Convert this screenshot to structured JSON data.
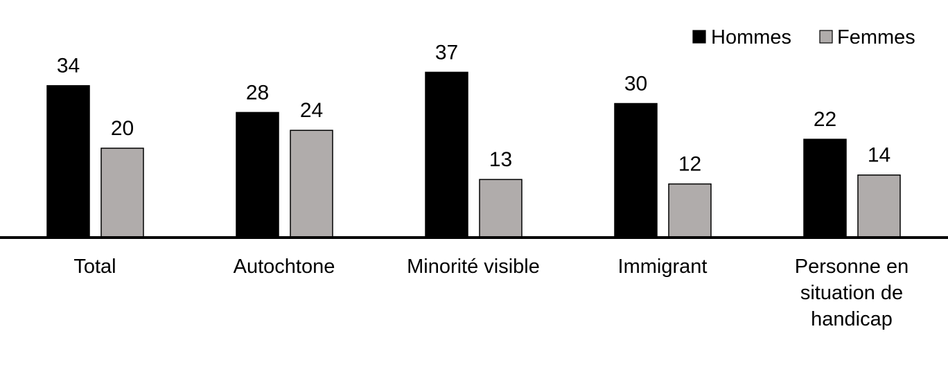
{
  "chart_data": {
    "type": "bar",
    "title": "",
    "xlabel": "",
    "ylabel": "",
    "ylim": [
      0,
      40
    ],
    "grid": false,
    "legend_position": "top-right",
    "categories": [
      [
        "Total"
      ],
      [
        "Autochtone"
      ],
      [
        "Minorité visible"
      ],
      [
        "Immigrant"
      ],
      [
        "Personne en",
        "situation de",
        "handicap"
      ]
    ],
    "series": [
      {
        "name": "Hommes",
        "color": "#000000",
        "values": [
          34,
          28,
          37,
          30,
          22
        ]
      },
      {
        "name": "Femmes",
        "color": "#b0acab",
        "values": [
          20,
          24,
          13,
          12,
          14
        ]
      }
    ]
  }
}
